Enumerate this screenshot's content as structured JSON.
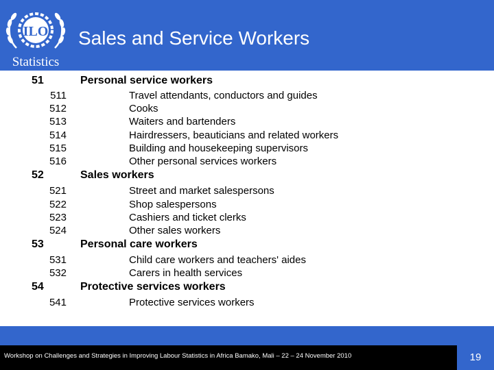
{
  "header": {
    "title": "Sales and Service Workers",
    "logo": {
      "text_top": "ILO",
      "text_bottom": "Statistics",
      "icon": "ilo-logo"
    }
  },
  "groups": [
    {
      "code": "51",
      "label": "Personal service workers",
      "items": [
        {
          "code": "511",
          "label": "Travel attendants, conductors and guides"
        },
        {
          "code": "512",
          "label": "Cooks"
        },
        {
          "code": "513",
          "label": "Waiters and bartenders"
        },
        {
          "code": "514",
          "label": "Hairdressers, beauticians and related workers"
        },
        {
          "code": "515",
          "label": "Building and housekeeping supervisors"
        },
        {
          "code": "516",
          "label": "Other personal services workers"
        }
      ]
    },
    {
      "code": "52",
      "label": "Sales workers",
      "items": [
        {
          "code": "521",
          "label": "Street and market salespersons"
        },
        {
          "code": "522",
          "label": "Shop salespersons"
        },
        {
          "code": "523",
          "label": "Cashiers and ticket clerks"
        },
        {
          "code": "524",
          "label": "Other sales workers"
        }
      ]
    },
    {
      "code": "53",
      "label": "Personal care workers",
      "items": [
        {
          "code": "531",
          "label": "Child care workers and teachers' aides"
        },
        {
          "code": "532",
          "label": "Carers in health services"
        }
      ]
    },
    {
      "code": "54",
      "label": "Protective services workers",
      "items": [
        {
          "code": "541",
          "label": "Protective services workers"
        }
      ]
    }
  ],
  "footer": {
    "text": "Workshop on Challenges and Strategies in Improving Labour Statistics in Africa Bamako, Mali – 22 – 24 November 2010",
    "slide_number": "19"
  },
  "colors": {
    "header": "#3366cc",
    "footer_box": "#000000",
    "text": "#000000"
  }
}
